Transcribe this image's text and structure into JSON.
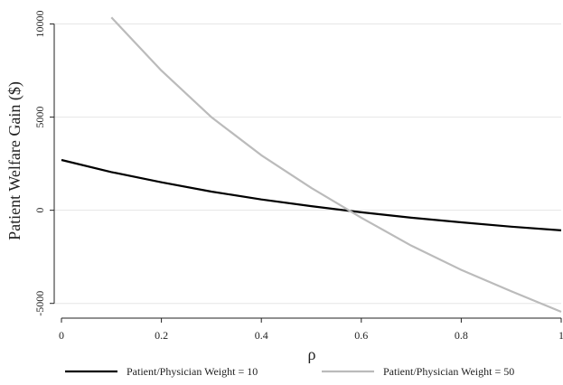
{
  "chart_data": {
    "type": "line",
    "xlabel": "ρ",
    "ylabel": "Patient Welfare Gain ($)",
    "xlim": [
      0,
      1
    ],
    "ylim": [
      -5000,
      10000
    ],
    "xticks": [
      0,
      0.2,
      0.4,
      0.6,
      0.8,
      1
    ],
    "xtick_labels": [
      "0",
      "0.2",
      "0.4",
      "0.6",
      "0.8",
      "1"
    ],
    "yticks": [
      -5000,
      0,
      5000,
      10000
    ],
    "ytick_labels": [
      "-5000",
      "0",
      "5000",
      "10000"
    ],
    "grid": true,
    "legend_position": "bottom",
    "series": [
      {
        "name": "Patient/Physician Weight = 10",
        "color": "#000000",
        "x": [
          0,
          0.1,
          0.2,
          0.3,
          0.4,
          0.5,
          0.6,
          0.7,
          0.8,
          0.9,
          1.0
        ],
        "y": [
          2700,
          2050,
          1500,
          1000,
          580,
          220,
          -110,
          -400,
          -650,
          -880,
          -1080
        ]
      },
      {
        "name": "Patient/Physician Weight = 50",
        "color": "#bbbbbb",
        "x": [
          0.1,
          0.2,
          0.3,
          0.4,
          0.5,
          0.6,
          0.7,
          0.8,
          0.9,
          1.0
        ],
        "y": [
          10350,
          7500,
          5000,
          2950,
          1200,
          -400,
          -1900,
          -3200,
          -4350,
          -5450
        ]
      }
    ]
  }
}
